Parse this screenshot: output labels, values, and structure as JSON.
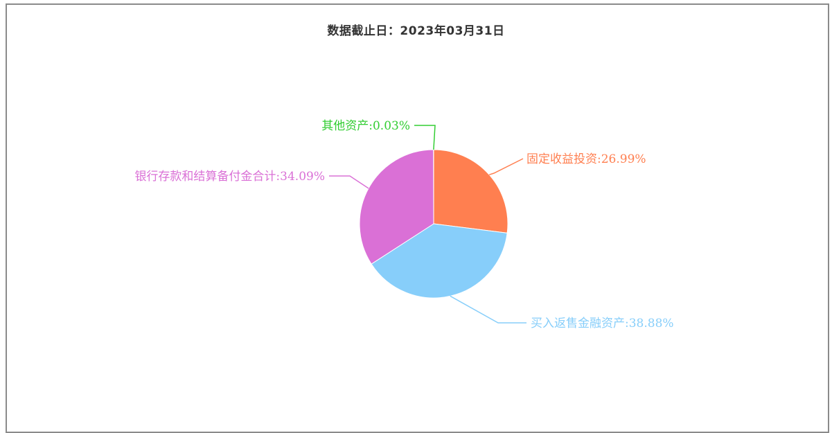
{
  "chart_data": {
    "type": "pie",
    "title": "数据截止日：2023年03月31日",
    "slices": [
      {
        "name": "固定收益投资",
        "value": 26.99,
        "label": "固定收益投资:26.99%",
        "color": "#ff7f50"
      },
      {
        "name": "买入返售金融资产",
        "value": 38.88,
        "label": "买入返售金融资产:38.88%",
        "color": "#87cefa"
      },
      {
        "name": "银行存款和结算备付金合计",
        "value": 34.09,
        "label": "银行存款和结算备付金合计:34.09%",
        "color": "#da70d6"
      },
      {
        "name": "其他资产",
        "value": 0.03,
        "label": "其他资产:0.03%",
        "color": "#32cd32"
      }
    ],
    "legend": "none"
  }
}
